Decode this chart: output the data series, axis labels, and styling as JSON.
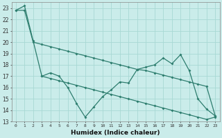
{
  "xlabel": "Humidex (Indice chaleur)",
  "x_all": [
    0,
    1,
    2,
    3,
    4,
    5,
    6,
    7,
    8,
    9,
    10,
    11,
    12,
    13,
    14,
    15,
    16,
    17,
    18,
    19,
    20,
    21,
    22,
    23
  ],
  "line_steep": [
    22.8,
    23.2,
    20.1,
    17.0,
    17.3,
    17.0,
    16.0,
    14.6,
    13.4,
    14.3,
    15.2,
    15.8,
    16.5,
    16.4,
    17.6,
    17.8,
    18.0,
    18.6,
    18.1,
    18.9,
    17.5,
    15.0,
    14.1,
    13.5
  ],
  "line_upper": [
    22.8,
    22.8,
    20.0,
    19.8,
    19.6,
    19.4,
    19.2,
    19.0,
    18.8,
    18.6,
    18.4,
    18.2,
    18.0,
    17.8,
    17.6,
    17.5,
    17.3,
    17.1,
    16.9,
    16.7,
    16.5,
    16.3,
    16.1,
    13.5
  ],
  "line_lower": [
    null,
    null,
    null,
    17.0,
    16.8,
    16.6,
    16.4,
    16.2,
    16.0,
    15.8,
    15.6,
    15.4,
    15.2,
    15.0,
    14.8,
    14.6,
    14.4,
    14.2,
    14.0,
    13.8,
    13.6,
    13.4,
    13.2,
    13.4
  ],
  "ylim": [
    13,
    23.5
  ],
  "xlim": [
    -0.5,
    23.5
  ],
  "yticks": [
    13,
    14,
    15,
    16,
    17,
    18,
    19,
    20,
    21,
    22,
    23
  ],
  "xticks": [
    0,
    1,
    2,
    3,
    4,
    5,
    6,
    7,
    8,
    9,
    10,
    11,
    12,
    13,
    14,
    15,
    16,
    17,
    18,
    19,
    20,
    21,
    22,
    23
  ],
  "color": "#2d7d6e",
  "bg_color": "#caecea",
  "grid_color": "#a8d8d4"
}
